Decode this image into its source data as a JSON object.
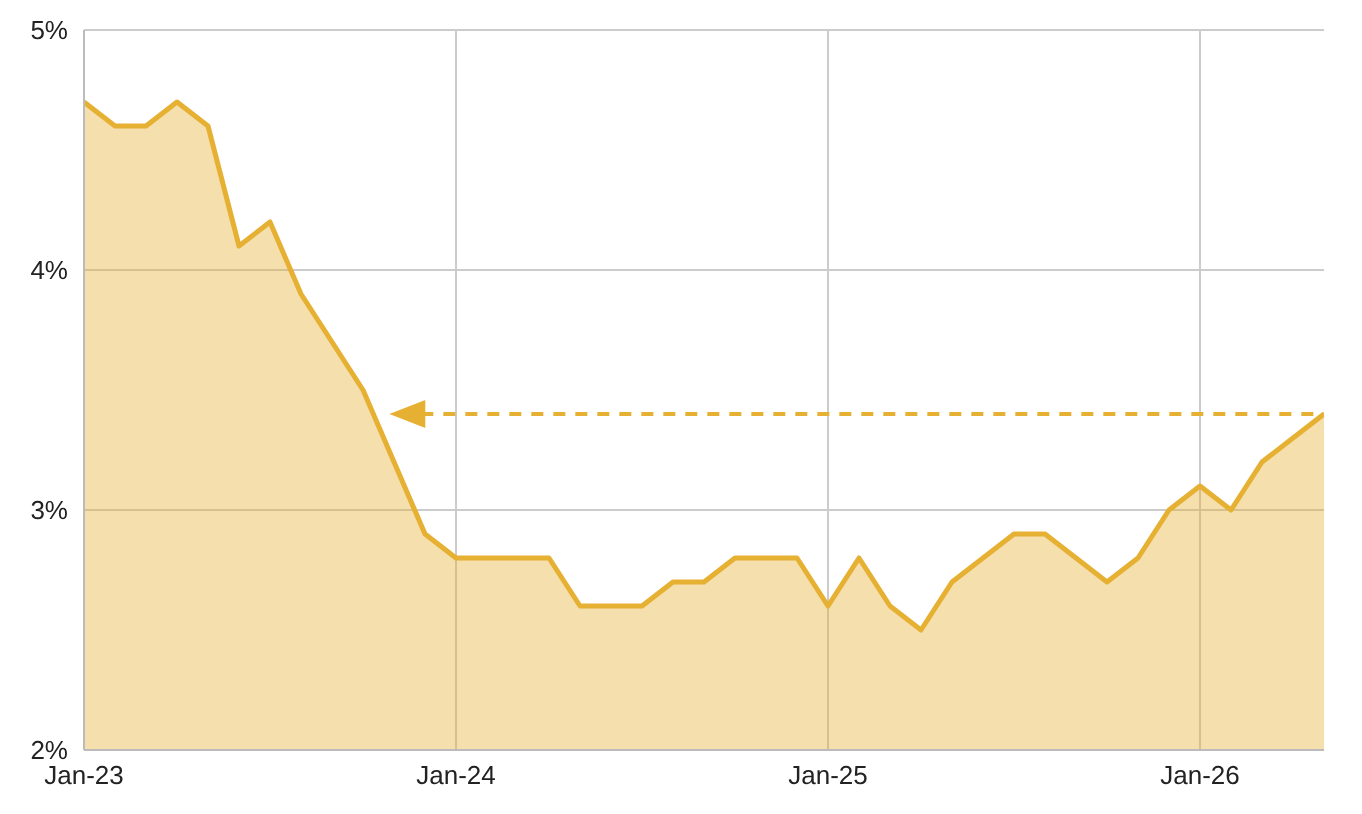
{
  "chart_data": {
    "type": "area",
    "x": [
      "2023-01",
      "2023-02",
      "2023-03",
      "2023-04",
      "2023-05",
      "2023-06",
      "2023-07",
      "2023-08",
      "2023-09",
      "2023-10",
      "2023-11",
      "2023-12",
      "2024-01",
      "2024-02",
      "2024-03",
      "2024-04",
      "2024-05",
      "2024-06",
      "2024-07",
      "2024-08",
      "2024-09",
      "2024-10",
      "2024-11",
      "2024-12",
      "2025-01",
      "2025-02",
      "2025-03",
      "2025-04",
      "2025-05",
      "2025-06",
      "2025-07",
      "2025-08",
      "2025-09",
      "2025-10",
      "2025-11",
      "2025-12",
      "2026-01",
      "2026-02",
      "2026-03",
      "2026-04",
      "2026-05"
    ],
    "series": [
      {
        "color": "#e6b032",
        "values": [
          4.7,
          4.6,
          4.6,
          4.7,
          4.6,
          4.1,
          4.2,
          3.9,
          3.7,
          3.5,
          3.2,
          2.9,
          2.8,
          2.8,
          2.8,
          2.8,
          2.6,
          2.6,
          2.6,
          2.7,
          2.7,
          2.8,
          2.8,
          2.8,
          2.6,
          2.8,
          2.6,
          2.5,
          2.7,
          2.8,
          2.9,
          2.9,
          2.8,
          2.7,
          2.8,
          3.0,
          3.1,
          3.0,
          3.2,
          3.3,
          3.4
        ]
      }
    ],
    "xlim": [
      "2023-01",
      "2026-05"
    ],
    "xticks": [
      {
        "value": "2023-01",
        "label": "Jan-23"
      },
      {
        "value": "2024-01",
        "label": "Jan-24"
      },
      {
        "value": "2025-01",
        "label": "Jan-25"
      },
      {
        "value": "2026-01",
        "label": "Jan-26"
      }
    ],
    "ylim": [
      2,
      5
    ],
    "yticks": [
      {
        "value": 2,
        "label": "2%"
      },
      {
        "value": 3,
        "label": "3%"
      },
      {
        "value": 4,
        "label": "4%"
      },
      {
        "value": 5,
        "label": "5%"
      }
    ],
    "ref_lines": [
      {
        "axis": "y",
        "value": 3.4,
        "color": "#e6b032",
        "line_style": "dashed"
      }
    ],
    "grid": true
  }
}
